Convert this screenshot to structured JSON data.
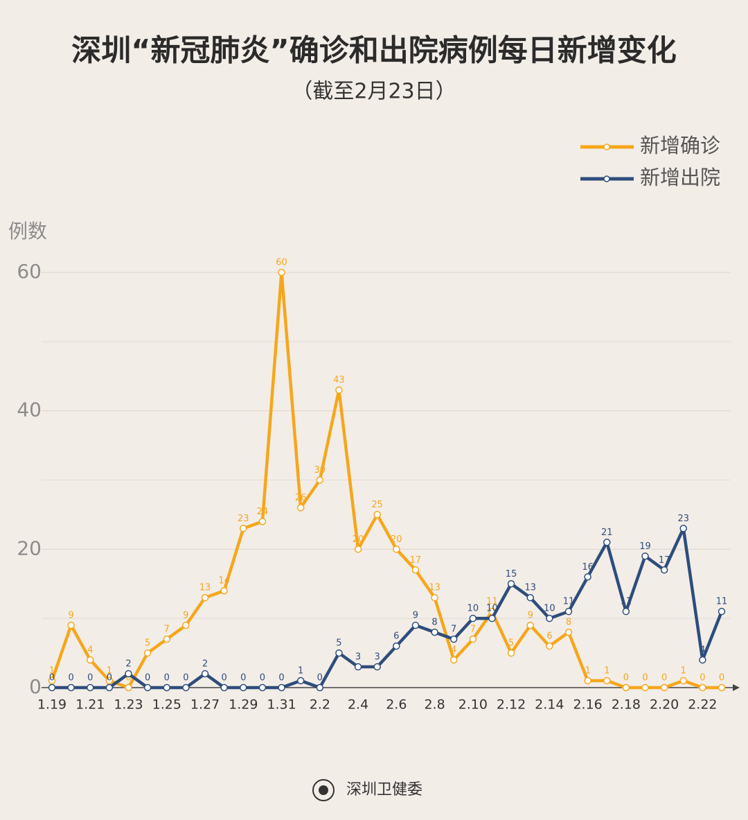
{
  "chart_data": {
    "type": "line",
    "title": "深圳“新冠肺炎”确诊和出院病例每日新增变化",
    "subtitle": "（截至2月23日）",
    "y_label": "例数",
    "categories": [
      "1.19",
      null,
      "1.21",
      null,
      "1.23",
      null,
      "1.25",
      null,
      "1.27",
      null,
      "1.29",
      null,
      "1.31",
      null,
      "2.2",
      null,
      "2.4",
      null,
      "2.6",
      null,
      "2.8",
      null,
      "2.10",
      null,
      "2.12",
      null,
      "2.14",
      null,
      "2.16",
      null,
      "2.18",
      null,
      "2.20",
      null,
      "2.22",
      null
    ],
    "series": [
      {
        "name": "新增确诊",
        "color": "#f5a71b",
        "values": [
          1,
          9,
          4,
          1,
          0,
          5,
          7,
          9,
          13,
          14,
          23,
          24,
          60,
          26,
          30,
          43,
          20,
          25,
          20,
          17,
          13,
          4,
          7,
          11,
          5,
          9,
          6,
          8,
          1,
          1,
          0,
          0,
          0,
          1,
          0,
          0
        ]
      },
      {
        "name": "新增出院",
        "color": "#2e4d7b",
        "values": [
          0,
          0,
          0,
          0,
          2,
          0,
          0,
          0,
          2,
          0,
          0,
          0,
          0,
          1,
          0,
          5,
          3,
          3,
          6,
          9,
          8,
          7,
          10,
          10,
          15,
          13,
          10,
          11,
          16,
          21,
          11,
          19,
          17,
          23,
          4,
          11
        ]
      }
    ],
    "ylim": [
      0,
      60
    ],
    "yticks": [
      0,
      20,
      40,
      60
    ],
    "minor_yticks": [
      10,
      30,
      50
    ],
    "grid": true,
    "legend": "top-right",
    "footer": "深圳卫健委"
  }
}
